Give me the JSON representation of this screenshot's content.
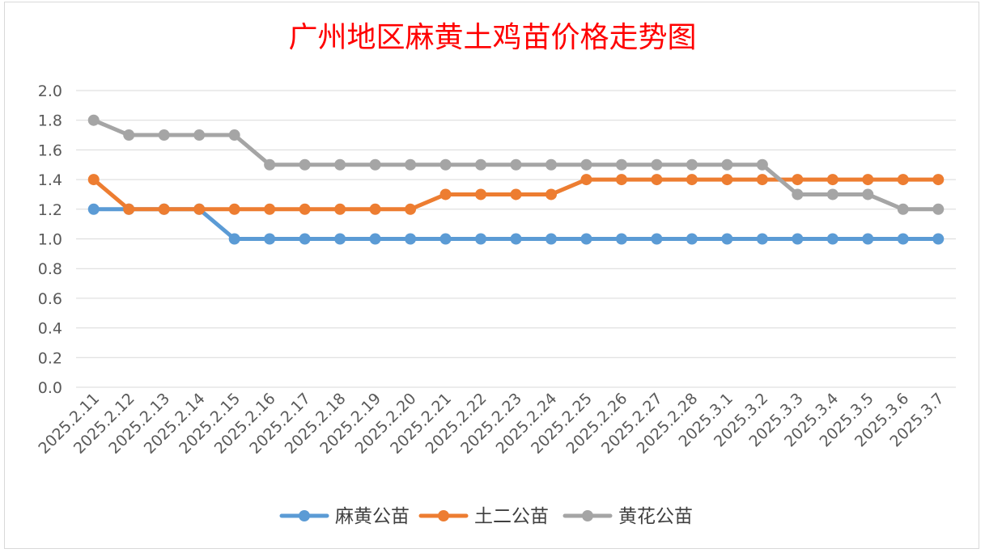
{
  "chart_data": {
    "type": "line",
    "title": "广州地区麻黄土鸡苗价格走势图",
    "xlabel": "",
    "ylabel": "",
    "categories": [
      "2025.2.11",
      "2025.2.12",
      "2025.2.13",
      "2025.2.14",
      "2025.2.15",
      "2025.2.16",
      "2025.2.17",
      "2025.2.18",
      "2025.2.19",
      "2025.2.20",
      "2025.2.21",
      "2025.2.22",
      "2025.2.23",
      "2025.2.24",
      "2025.2.25",
      "2025.2.26",
      "2025.2.27",
      "2025.2.28",
      "2025.3.1",
      "2025.3.2",
      "2025.3.3",
      "2025.3.4",
      "2025.3.5",
      "2025.3.6",
      "2025.3.7"
    ],
    "ylim": [
      0,
      2.0
    ],
    "yticks": [
      "0.0",
      "0.2",
      "0.4",
      "0.6",
      "0.8",
      "1.0",
      "1.2",
      "1.4",
      "1.6",
      "1.8",
      "2.0"
    ],
    "grid": true,
    "legend_position": "bottom",
    "series": [
      {
        "name": "麻黄公苗",
        "color": "#5b9bd5",
        "values": [
          1.2,
          1.2,
          1.2,
          1.2,
          1.0,
          1.0,
          1.0,
          1.0,
          1.0,
          1.0,
          1.0,
          1.0,
          1.0,
          1.0,
          1.0,
          1.0,
          1.0,
          1.0,
          1.0,
          1.0,
          1.0,
          1.0,
          1.0,
          1.0,
          1.0
        ]
      },
      {
        "name": "土二公苗",
        "color": "#ed7d31",
        "values": [
          1.4,
          1.2,
          1.2,
          1.2,
          1.2,
          1.2,
          1.2,
          1.2,
          1.2,
          1.2,
          1.3,
          1.3,
          1.3,
          1.3,
          1.4,
          1.4,
          1.4,
          1.4,
          1.4,
          1.4,
          1.4,
          1.4,
          1.4,
          1.4,
          1.4
        ]
      },
      {
        "name": "黄花公苗",
        "color": "#a5a5a5",
        "values": [
          1.8,
          1.7,
          1.7,
          1.7,
          1.7,
          1.5,
          1.5,
          1.5,
          1.5,
          1.5,
          1.5,
          1.5,
          1.5,
          1.5,
          1.5,
          1.5,
          1.5,
          1.5,
          1.5,
          1.5,
          1.3,
          1.3,
          1.3,
          1.2,
          1.2
        ]
      }
    ]
  }
}
